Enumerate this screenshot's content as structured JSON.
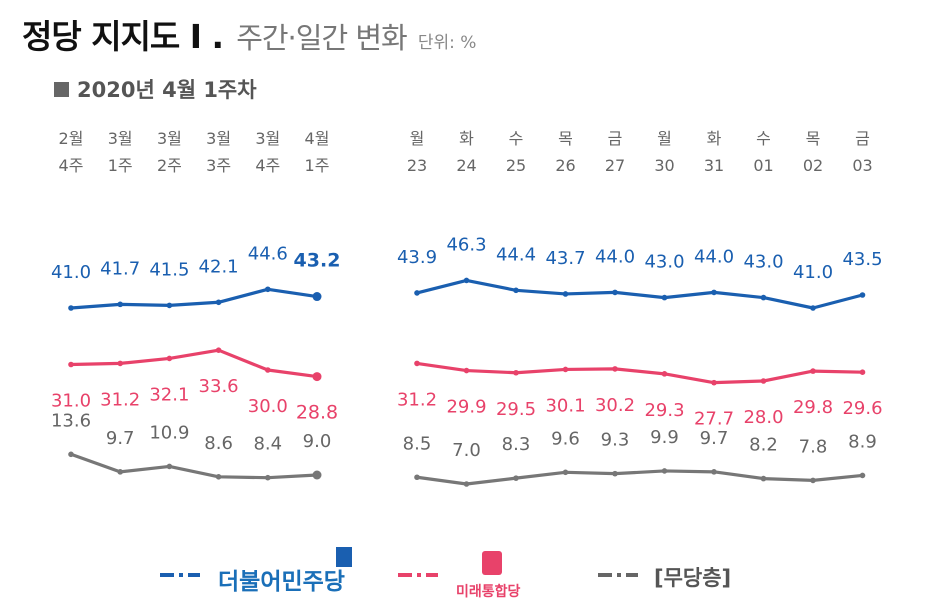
{
  "header": {
    "title": "정당 지지도 I .",
    "subtitle": "주간·일간 변화",
    "unit": "단위: %",
    "period": "2020년 4월 1주차"
  },
  "colors": {
    "democratic": "#1a5fb0",
    "future": "#e8426a",
    "none": "#777777"
  },
  "chart_data": [
    {
      "type": "line",
      "panel": "weekly",
      "x_top": [
        "2월",
        "3월",
        "3월",
        "3월",
        "3월",
        "4월"
      ],
      "x_bottom": [
        "4주",
        "1주",
        "2주",
        "3주",
        "4주",
        "1주"
      ],
      "series": [
        {
          "key": "democratic",
          "values": [
            41.0,
            41.7,
            41.5,
            42.1,
            44.6,
            43.2
          ]
        },
        {
          "key": "future",
          "values": [
            31.0,
            31.2,
            32.1,
            33.6,
            30.0,
            28.8
          ]
        },
        {
          "key": "none",
          "values": [
            13.6,
            9.7,
            10.9,
            8.6,
            8.4,
            9.0
          ]
        }
      ]
    },
    {
      "type": "line",
      "panel": "daily",
      "x_top": [
        "월",
        "화",
        "수",
        "목",
        "금",
        "월",
        "화",
        "수",
        "목",
        "금"
      ],
      "x_bottom": [
        "23",
        "24",
        "25",
        "26",
        "27",
        "30",
        "31",
        "01",
        "02",
        "03"
      ],
      "series": [
        {
          "key": "democratic",
          "values": [
            43.9,
            46.3,
            44.4,
            43.7,
            44.0,
            43.0,
            44.0,
            43.0,
            41.0,
            43.5
          ]
        },
        {
          "key": "future",
          "values": [
            31.2,
            29.9,
            29.5,
            30.1,
            30.2,
            29.3,
            27.7,
            28.0,
            29.8,
            29.6
          ]
        },
        {
          "key": "none",
          "values": [
            8.5,
            7.0,
            8.3,
            9.6,
            9.3,
            9.9,
            9.7,
            8.2,
            7.8,
            8.9
          ]
        }
      ]
    }
  ],
  "legend": [
    {
      "key": "democratic",
      "label": "더불어민주당"
    },
    {
      "key": "future",
      "label": "미래통합당"
    },
    {
      "key": "none",
      "label": "[무당층]"
    }
  ]
}
